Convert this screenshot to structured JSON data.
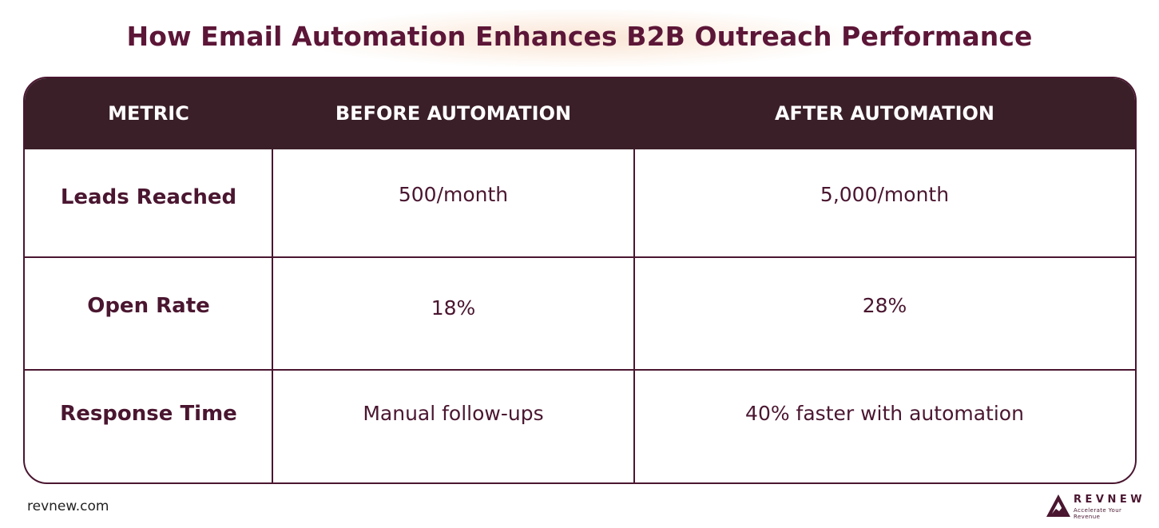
{
  "title": "How Email Automation Enhances B2B Outreach Performance",
  "table": {
    "headers": [
      "METRIC",
      "BEFORE AUTOMATION",
      "AFTER AUTOMATION"
    ],
    "rows": [
      {
        "metric": "Leads Reached",
        "before": "500/month",
        "after": "5,000/month"
      },
      {
        "metric": "Open Rate",
        "before": "18%",
        "after": "28%"
      },
      {
        "metric": "Response Time",
        "before": "Manual follow-ups",
        "after": "40% faster with automation"
      }
    ]
  },
  "footer": {
    "url": "revnew.com",
    "logo": {
      "word": "REVNEW",
      "tagline": "Accelerate Your Revenue",
      "icon": "mountain-logo-icon"
    }
  },
  "colors": {
    "brand": "#5c1637",
    "header_bg": "#3a1f28",
    "border": "#4a1630"
  }
}
